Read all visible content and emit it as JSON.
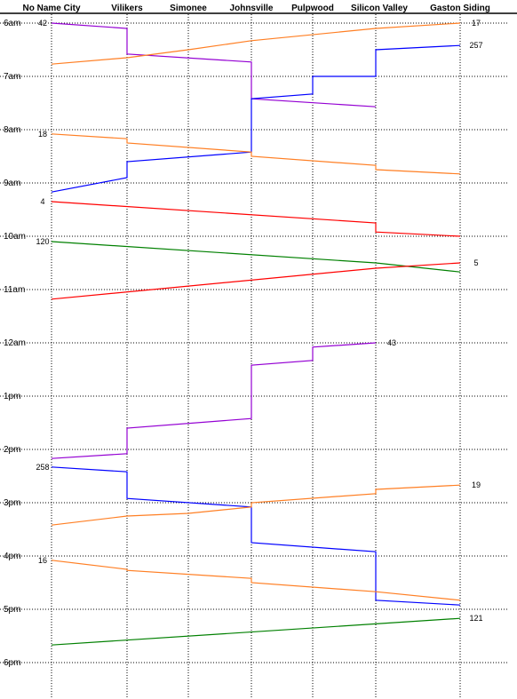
{
  "stations": [
    "No Name City",
    "Vilikers",
    "Simonee",
    "Johnsville",
    "Pulpwood",
    "Silicon Valley",
    "Gaston Siding"
  ],
  "times": [
    "6am",
    "7am",
    "8am",
    "9am",
    "10am",
    "11am",
    "12am",
    "1pm",
    "2pm",
    "3pm",
    "4pm",
    "5pm",
    "6pm"
  ],
  "colors": {
    "purple": "#9400d3",
    "orange": "#ff7f24",
    "blue": "#0000ff",
    "red": "#ff0000",
    "green": "#008000"
  },
  "trains": [
    {
      "number": "42",
      "color": "purple",
      "stops": [
        [
          "No Name City",
          0.0
        ],
        [
          "Vilikers",
          0.1
        ],
        [
          "Vilikers",
          0.58
        ],
        [
          "Johnsville",
          0.73
        ],
        [
          "Johnsville",
          1.42
        ],
        [
          "Silicon Valley",
          1.57
        ]
      ]
    },
    {
      "number": "17",
      "color": "orange",
      "stops": [
        [
          "Gaston Siding",
          0.0
        ],
        [
          "Silicon Valley",
          0.1
        ],
        [
          "Johnsville",
          0.33
        ],
        [
          "Simonee",
          0.5
        ],
        [
          "Vilikers",
          0.65
        ],
        [
          "No Name City",
          0.77
        ]
      ]
    },
    {
      "number": "257",
      "color": "blue",
      "stops": [
        [
          "Gaston Siding",
          0.42
        ],
        [
          "Silicon Valley",
          0.5
        ],
        [
          "Silicon Valley",
          1.0
        ],
        [
          "Pulpwood",
          1.0
        ],
        [
          "Pulpwood",
          1.33
        ],
        [
          "Johnsville",
          1.42
        ],
        [
          "Johnsville",
          2.42
        ],
        [
          "Vilikers",
          2.6
        ],
        [
          "Vilikers",
          2.9
        ],
        [
          "No Name City",
          3.17
        ]
      ]
    },
    {
      "number": "18",
      "color": "orange",
      "stops": [
        [
          "No Name City",
          2.08
        ],
        [
          "Vilikers",
          2.17
        ],
        [
          "Vilikers",
          2.25
        ],
        [
          "Johnsville",
          2.42
        ],
        [
          "Johnsville",
          2.5
        ],
        [
          "Silicon Valley",
          2.67
        ],
        [
          "Silicon Valley",
          2.75
        ],
        [
          "Gaston Siding",
          2.83
        ]
      ]
    },
    {
      "number": "4",
      "color": "red",
      "stops": [
        [
          "No Name City",
          3.35
        ],
        [
          "Silicon Valley",
          3.75
        ],
        [
          "Silicon Valley",
          3.92
        ],
        [
          "Gaston Siding",
          4.0
        ]
      ]
    },
    {
      "number": "120",
      "color": "green",
      "stops": [
        [
          "No Name City",
          4.1
        ],
        [
          "Silicon Valley",
          4.5
        ],
        [
          "Gaston Siding",
          4.67
        ]
      ]
    },
    {
      "number": "5",
      "color": "red",
      "stops": [
        [
          "Gaston Siding",
          4.5
        ],
        [
          "Silicon Valley",
          4.6
        ],
        [
          "No Name City",
          5.18
        ]
      ]
    },
    {
      "number": "43",
      "color": "purple",
      "stops": [
        [
          "Silicon Valley",
          6.0
        ],
        [
          "Pulpwood",
          6.08
        ],
        [
          "Pulpwood",
          6.33
        ],
        [
          "Johnsville",
          6.42
        ],
        [
          "Johnsville",
          7.42
        ],
        [
          "Vilikers",
          7.6
        ],
        [
          "Vilikers",
          8.08
        ],
        [
          "No Name City",
          8.17
        ]
      ]
    },
    {
      "number": "258",
      "color": "blue",
      "stops": [
        [
          "No Name City",
          8.33
        ],
        [
          "Vilikers",
          8.42
        ],
        [
          "Vilikers",
          8.92
        ],
        [
          "Johnsville",
          9.08
        ],
        [
          "Johnsville",
          9.75
        ],
        [
          "Silicon Valley",
          9.92
        ],
        [
          "Silicon Valley",
          10.83
        ],
        [
          "Gaston Siding",
          10.92
        ]
      ]
    },
    {
      "number": "19",
      "color": "orange",
      "stops": [
        [
          "Gaston Siding",
          8.67
        ],
        [
          "Silicon Valley",
          8.75
        ],
        [
          "Silicon Valley",
          8.83
        ],
        [
          "Johnsville",
          9.0
        ],
        [
          "Johnsville",
          9.08
        ],
        [
          "Simonee",
          9.2
        ],
        [
          "Vilikers",
          9.25
        ],
        [
          "No Name City",
          9.42
        ]
      ]
    },
    {
      "number": "16",
      "color": "orange",
      "stops": [
        [
          "No Name City",
          10.08
        ],
        [
          "Vilikers",
          10.25
        ],
        [
          "Vilikers",
          10.27
        ],
        [
          "Johnsville",
          10.42
        ],
        [
          "Johnsville",
          10.5
        ],
        [
          "Silicon Valley",
          10.67
        ],
        [
          "Silicon Valley",
          10.67
        ],
        [
          "Gaston Siding",
          10.83
        ]
      ]
    },
    {
      "number": "121",
      "color": "green",
      "stops": [
        [
          "Gaston Siding",
          11.17
        ],
        [
          "No Name City",
          11.67
        ]
      ]
    }
  ]
}
